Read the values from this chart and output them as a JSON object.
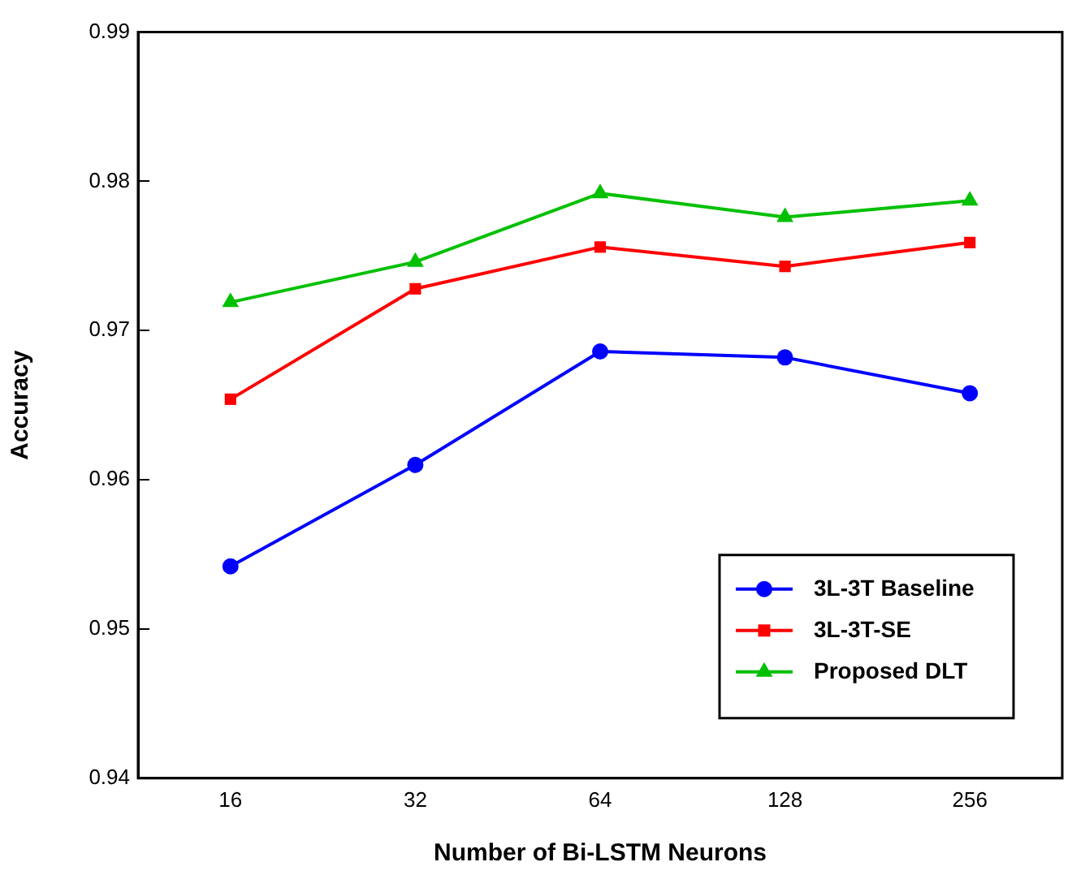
{
  "chart_data": {
    "type": "line",
    "xlabel": "Number of Bi-LSTM Neurons",
    "ylabel": "Accuracy",
    "categories": [
      "16",
      "32",
      "64",
      "128",
      "256"
    ],
    "ylim": [
      0.94,
      0.99
    ],
    "yticks": [
      0.94,
      0.95,
      0.96,
      0.97,
      0.98,
      0.99
    ],
    "grid": false,
    "legend": "bottom right",
    "series": [
      {
        "name": "3L-3T Baseline",
        "color": "#0000ff",
        "marker": "circle",
        "values": [
          0.9542,
          0.961,
          0.9686,
          0.9682,
          0.9658
        ]
      },
      {
        "name": "3L-3T-SE",
        "color": "#ff0000",
        "marker": "square",
        "values": [
          0.9654,
          0.9728,
          0.9756,
          0.9743,
          0.9759
        ]
      },
      {
        "name": "Proposed DLT",
        "color": "#00c000",
        "marker": "triangle",
        "values": [
          0.9719,
          0.9746,
          0.9792,
          0.9776,
          0.9787
        ]
      }
    ]
  }
}
